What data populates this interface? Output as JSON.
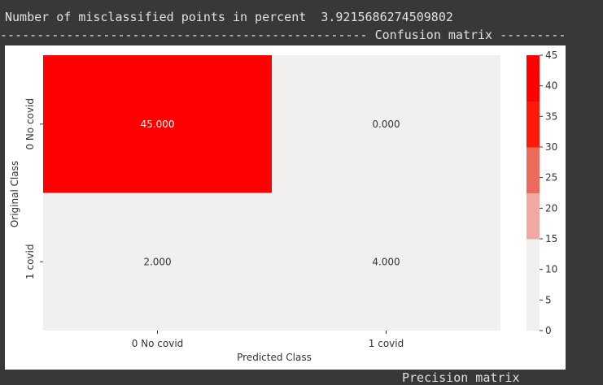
{
  "output": {
    "misclassified_label": "Number of misclassified points in percent",
    "misclassified_value": "3.9215686274509802",
    "separator_left": "--------------------------------------------------",
    "separator_title": "Confusion matrix",
    "separator_right": "---------",
    "next_line": "Precision matrix"
  },
  "colors": {
    "cell_high": "#ff0000",
    "cell_low": "#f2f0ef",
    "colorbar": [
      "#f2f0ef",
      "#f2f0ef",
      "#f0a8a0",
      "#ec6a5c",
      "#ff1a0a",
      "#ff0000"
    ]
  },
  "chart_data": {
    "type": "heatmap",
    "title": "",
    "xlabel": "Predicted Class",
    "ylabel": "Original Class",
    "x_categories": [
      "0 No covid",
      "1 covid"
    ],
    "y_categories": [
      "0 No covid",
      "1 covid"
    ],
    "values": [
      [
        45,
        0
      ],
      [
        2,
        4
      ]
    ],
    "annotations": [
      [
        "45.000",
        "0.000"
      ],
      [
        "2.000",
        "4.000"
      ]
    ],
    "colorbar": {
      "min": 0,
      "max": 45,
      "ticks": [
        0,
        5,
        10,
        15,
        20,
        25,
        30,
        35,
        40,
        45
      ],
      "tick_labels": [
        "0",
        "5",
        "10",
        "15",
        "20",
        "25",
        "30",
        "35",
        "40",
        "45"
      ]
    }
  }
}
